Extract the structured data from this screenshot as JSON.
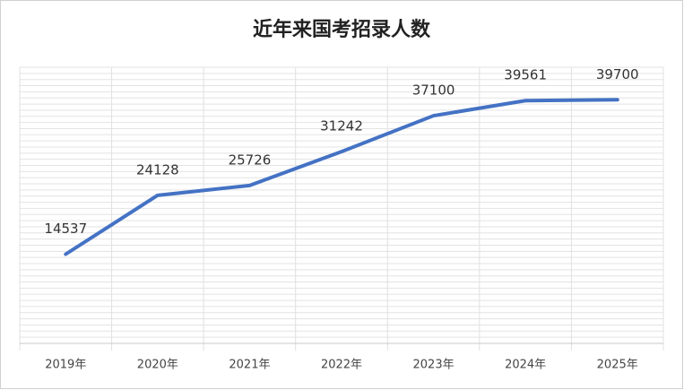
{
  "chart_data": {
    "type": "line",
    "title": "近年来国考招录人数",
    "categories": [
      "2019年",
      "2020年",
      "2021年",
      "2022年",
      "2023年",
      "2024年",
      "2025年"
    ],
    "values": [
      14537,
      24128,
      25726,
      31242,
      37100,
      39561,
      39700
    ],
    "color": "#4472c4",
    "ylim": [
      0,
      45000
    ],
    "yticks": [
      0,
      1000,
      2000,
      3000,
      4000,
      5000,
      6000,
      7000,
      8000,
      9000,
      10000,
      11000,
      12000,
      13000,
      14000,
      15000,
      16000,
      17000,
      18000,
      19000,
      20000,
      21000,
      22000,
      23000,
      24000,
      25000,
      26000,
      27000,
      28000,
      29000,
      30000,
      31000,
      32000,
      33000,
      34000,
      35000,
      36000,
      37000,
      38000,
      39000,
      40000,
      41000,
      42000,
      43000,
      44000,
      45000
    ],
    "grid": true
  }
}
